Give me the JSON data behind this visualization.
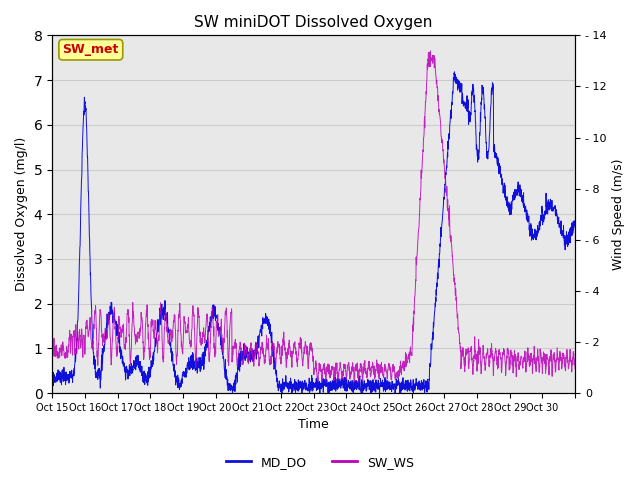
{
  "title": "SW miniDOT Dissolved Oxygen",
  "xlabel": "Time",
  "ylabel_left": "Dissolved Oxygen (mg/l)",
  "ylabel_right": "Wind Speed (m/s)",
  "ylim_left": [
    0.0,
    8.0
  ],
  "ylim_right": [
    0,
    14
  ],
  "yticks_left": [
    0.0,
    1.0,
    2.0,
    3.0,
    4.0,
    5.0,
    6.0,
    7.0,
    8.0
  ],
  "yticks_right": [
    0,
    2,
    4,
    6,
    8,
    10,
    12,
    14
  ],
  "color_DO": "#1010dd",
  "color_WS": "#bb00bb",
  "legend_label_DO": "MD_DO",
  "legend_label_WS": "SW_WS",
  "annotation_text": "SW_met",
  "annotation_color": "#cc0000",
  "annotation_bg": "#ffff99",
  "grid_color": "#cccccc",
  "bg_color": "#e8e8e8",
  "figsize": [
    6.4,
    4.8
  ],
  "dpi": 100
}
